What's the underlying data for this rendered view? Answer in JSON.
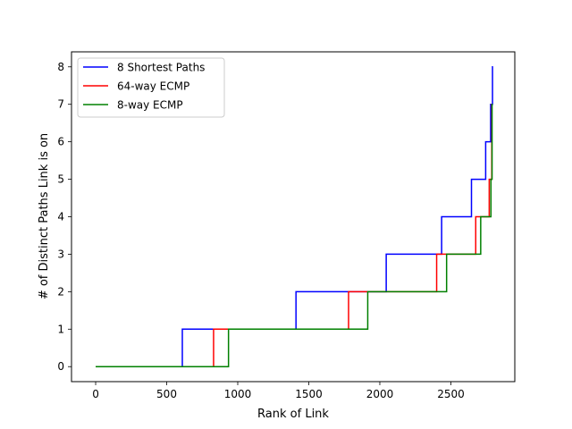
{
  "chart_data": {
    "type": "line",
    "title": "",
    "xlabel": "Rank of Link",
    "ylabel": "# of Distinct Paths Link is on",
    "xlim": [
      -170,
      2950
    ],
    "ylim": [
      -0.4,
      8.4
    ],
    "xticks": [
      0,
      500,
      1000,
      1500,
      2000,
      2500
    ],
    "yticks": [
      0,
      1,
      2,
      3,
      4,
      5,
      6,
      7,
      8
    ],
    "grid": false,
    "legend_position": "top-left",
    "series": [
      {
        "name": "8 Shortest Paths",
        "color": "#0000ff",
        "steps": [
          [
            0,
            0
          ],
          [
            610,
            1
          ],
          [
            1410,
            2
          ],
          [
            2045,
            3
          ],
          [
            2435,
            4
          ],
          [
            2645,
            5
          ],
          [
            2745,
            6
          ],
          [
            2780,
            7
          ],
          [
            2793,
            8
          ]
        ],
        "x_end": 2797
      },
      {
        "name": "64-way ECMP",
        "color": "#ff0000",
        "steps": [
          [
            0,
            0
          ],
          [
            830,
            1
          ],
          [
            1780,
            2
          ],
          [
            2400,
            3
          ],
          [
            2675,
            4
          ],
          [
            2770,
            5
          ],
          [
            2788,
            7
          ]
        ],
        "x_end": 2792
      },
      {
        "name": "8-way ECMP",
        "color": "#008000",
        "steps": [
          [
            0,
            0
          ],
          [
            935,
            1
          ],
          [
            1915,
            2
          ],
          [
            2470,
            3
          ],
          [
            2710,
            4
          ],
          [
            2782,
            5
          ],
          [
            2790,
            7
          ]
        ],
        "x_end": 2795
      }
    ]
  }
}
